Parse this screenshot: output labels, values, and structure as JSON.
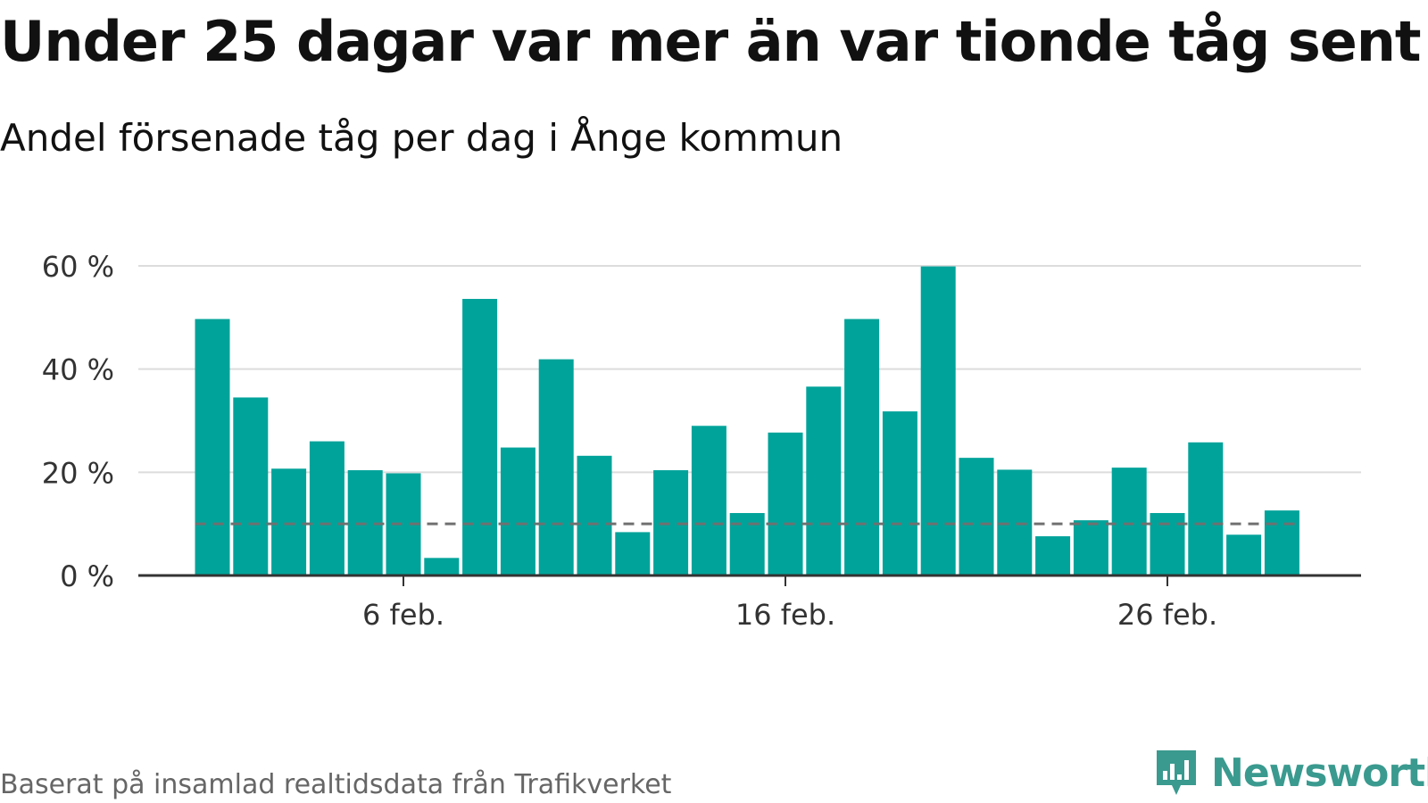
{
  "title": "Under 25 dagar var mer än var tionde tåg sent",
  "subtitle": "Andel försenade tåg per dag i Ånge kommun",
  "source": "Baserat på insamlad realtidsdata från Trafikverket",
  "brand": {
    "name": "Newsworthy",
    "icon": "newsworthy-logo-icon",
    "color": "#3a9a8f"
  },
  "colors": {
    "bar": "#00a39a",
    "reference": "#707070",
    "grid": "#dcdcdc",
    "axis": "#333333"
  },
  "chart_data": {
    "type": "bar",
    "x": [
      "2024-02-01",
      "2024-02-02",
      "2024-02-03",
      "2024-02-04",
      "2024-02-05",
      "2024-02-06",
      "2024-02-07",
      "2024-02-08",
      "2024-02-09",
      "2024-02-10",
      "2024-02-11",
      "2024-02-12",
      "2024-02-13",
      "2024-02-14",
      "2024-02-15",
      "2024-02-16",
      "2024-02-17",
      "2024-02-18",
      "2024-02-19",
      "2024-02-20",
      "2024-02-21",
      "2024-02-22",
      "2024-02-23",
      "2024-02-24",
      "2024-02-25",
      "2024-02-26",
      "2024-02-27",
      "2024-02-28",
      "2024-02-29"
    ],
    "values": [
      49.7,
      34.5,
      20.7,
      26.0,
      20.4,
      19.8,
      3.4,
      53.6,
      24.8,
      41.9,
      23.2,
      8.4,
      20.4,
      29.0,
      12.1,
      27.7,
      36.6,
      49.7,
      31.8,
      59.9,
      22.8,
      20.5,
      7.6,
      10.7,
      20.9,
      12.1,
      25.8,
      7.9,
      12.6
    ],
    "reference_line": 10,
    "ylim": [
      0,
      60
    ],
    "yticks": [
      0,
      20,
      40,
      60
    ],
    "ytick_labels": [
      "0 %",
      "20 %",
      "40 %",
      "60 %"
    ],
    "xticks": [
      "2024-02-06",
      "2024-02-16",
      "2024-02-26"
    ],
    "xtick_labels": [
      "6 feb.",
      "16 feb.",
      "26 feb."
    ],
    "xlabel": "",
    "ylabel": "",
    "grid": true
  }
}
